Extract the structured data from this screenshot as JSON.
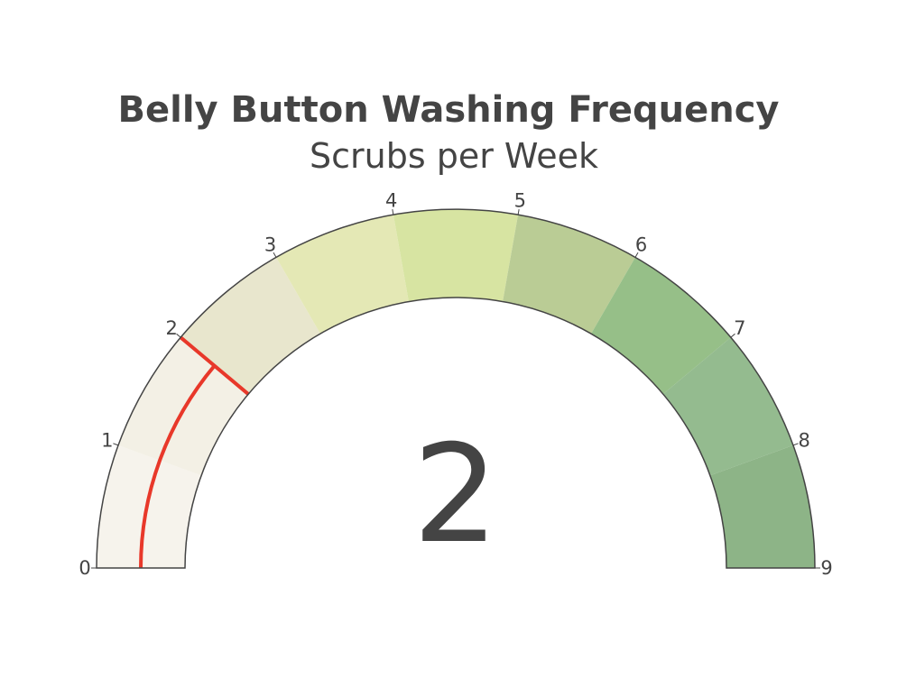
{
  "chart_data": {
    "type": "gauge",
    "title": "Belly Button Washing Frequency",
    "subtitle": "Scrubs per Week",
    "value": 2,
    "value_label": "2",
    "range": [
      0,
      9
    ],
    "tick_labels": [
      "0",
      "1",
      "2",
      "3",
      "4",
      "5",
      "6",
      "7",
      "8",
      "9"
    ],
    "bands": [
      {
        "from": 0,
        "to": 1,
        "color": "#f6f3ec"
      },
      {
        "from": 1,
        "to": 2,
        "color": "#f3f0e5"
      },
      {
        "from": 2,
        "to": 3,
        "color": "#e8e6cd"
      },
      {
        "from": 3,
        "to": 4,
        "color": "#e4e8b5"
      },
      {
        "from": 4,
        "to": 5,
        "color": "#d7e4a2"
      },
      {
        "from": 5,
        "to": 6,
        "color": "#bacc95"
      },
      {
        "from": 6,
        "to": 7,
        "color": "#96bf88"
      },
      {
        "from": 7,
        "to": 8,
        "color": "#94bb8f"
      },
      {
        "from": 8,
        "to": 9,
        "color": "#8db487"
      }
    ],
    "needle_color": "#e8382a",
    "border_color": "#444444"
  }
}
